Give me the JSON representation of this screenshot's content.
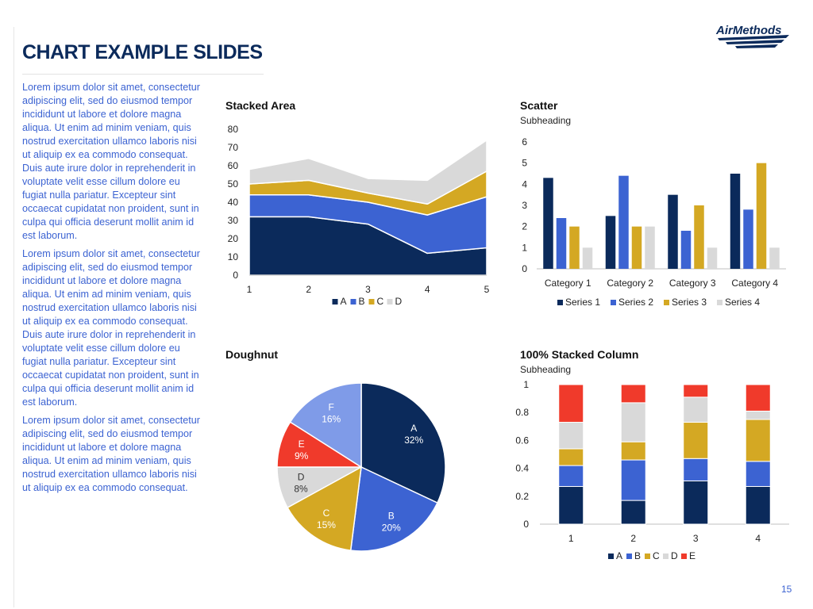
{
  "page": {
    "title": "CHART EXAMPLE SLIDES",
    "logo_text": "AirMethods",
    "page_number": "15",
    "paragraphs": [
      "Lorem ipsum dolor sit amet, consectetur adipiscing elit, sed do eiusmod tempor incididunt ut labore et dolore magna aliqua. Ut enim ad minim veniam, quis nostrud exercitation ullamco laboris nisi ut aliquip ex ea commodo consequat. Duis aute irure dolor in reprehenderit in voluptate velit esse cillum dolore eu fugiat nulla pariatur. Excepteur sint occaecat cupidatat non proident, sunt in culpa qui officia deserunt mollit anim id est laborum.",
      "Lorem ipsum dolor sit amet, consectetur adipiscing elit, sed do eiusmod tempor incididunt ut labore et dolore magna aliqua. Ut enim ad minim veniam, quis nostrud exercitation ullamco laboris nisi ut aliquip ex ea commodo consequat. Duis aute irure dolor in reprehenderit in voluptate velit esse cillum dolore eu fugiat nulla pariatur. Excepteur sint occaecat cupidatat non proident, sunt in culpa qui officia deserunt mollit anim id est laborum.",
      "Lorem ipsum dolor sit amet, consectetur adipiscing elit, sed do eiusmod tempor incididunt ut labore et dolore magna aliqua. Ut enim ad minim veniam, quis nostrud exercitation ullamco laboris nisi ut aliquip ex ea commodo consequat."
    ]
  },
  "colors": {
    "navy": "#0b2a5b",
    "blue": "#3c63d2",
    "gold": "#d4a823",
    "gray": "#d9d9d9",
    "red": "#f03a2b",
    "light_blue": "#7f9be8"
  },
  "chart_data": [
    {
      "type": "area",
      "stacked": true,
      "title": "Stacked Area",
      "x": [
        1,
        2,
        3,
        4,
        5
      ],
      "series": [
        {
          "name": "A",
          "values": [
            32,
            32,
            28,
            12,
            15
          ]
        },
        {
          "name": "B",
          "values": [
            12,
            12,
            12,
            21,
            28
          ]
        },
        {
          "name": "C",
          "values": [
            6,
            8,
            5,
            6,
            14
          ]
        },
        {
          "name": "D",
          "values": [
            8,
            12,
            8,
            13,
            17
          ]
        }
      ],
      "ylim": [
        0,
        80
      ],
      "yticks": [
        0,
        10,
        20,
        30,
        40,
        50,
        60,
        70,
        80
      ],
      "legend": "bottom"
    },
    {
      "type": "bar",
      "title": "Scatter",
      "subtitle": "Subheading",
      "categories": [
        "Category 1",
        "Category 2",
        "Category 3",
        "Category 4"
      ],
      "series": [
        {
          "name": "Series 1",
          "values": [
            4.3,
            2.5,
            3.5,
            4.5
          ]
        },
        {
          "name": "Series 2",
          "values": [
            2.4,
            4.4,
            1.8,
            2.8
          ]
        },
        {
          "name": "Series 3",
          "values": [
            2.0,
            2.0,
            3.0,
            5.0
          ]
        },
        {
          "name": "Series 4",
          "values": [
            1.0,
            2.0,
            1.0,
            1.0
          ]
        }
      ],
      "ylim": [
        0,
        6
      ],
      "yticks": [
        0,
        1,
        2,
        3,
        4,
        5,
        6
      ],
      "legend": "bottom"
    },
    {
      "type": "pie",
      "title": "Doughnut",
      "slices": [
        {
          "label": "A",
          "value": 32,
          "text": "32%"
        },
        {
          "label": "B",
          "value": 20,
          "text": "20%"
        },
        {
          "label": "C",
          "value": 15,
          "text": "15%"
        },
        {
          "label": "D",
          "value": 8,
          "text": "8%"
        },
        {
          "label": "E",
          "value": 9,
          "text": "9%"
        },
        {
          "label": "F",
          "value": 16,
          "text": "16%"
        }
      ]
    },
    {
      "type": "bar",
      "stacked": "percent",
      "title": "100% Stacked Column",
      "subtitle": "Subheading",
      "categories": [
        "1",
        "2",
        "3",
        "4"
      ],
      "series": [
        {
          "name": "A",
          "values": [
            0.27,
            0.17,
            0.31,
            0.27
          ]
        },
        {
          "name": "B",
          "values": [
            0.15,
            0.29,
            0.16,
            0.18
          ]
        },
        {
          "name": "C",
          "values": [
            0.12,
            0.13,
            0.26,
            0.3
          ]
        },
        {
          "name": "D",
          "values": [
            0.19,
            0.28,
            0.18,
            0.06
          ]
        },
        {
          "name": "E",
          "values": [
            0.27,
            0.13,
            0.09,
            0.19
          ]
        }
      ],
      "ylim": [
        0,
        1
      ],
      "yticks": [
        "0",
        "0.2",
        "0.4",
        "0.6",
        "0.8",
        "1"
      ],
      "legend": "bottom"
    }
  ]
}
